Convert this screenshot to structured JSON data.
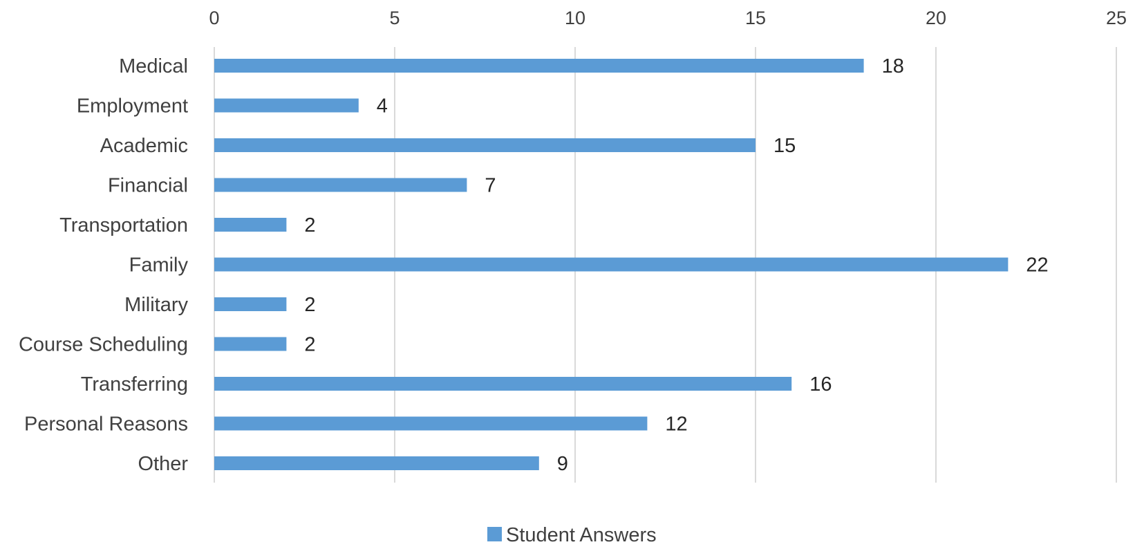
{
  "chart_data": {
    "type": "bar",
    "orientation": "horizontal",
    "categories": [
      "Medical",
      "Employment",
      "Academic",
      "Financial",
      "Transportation",
      "Family",
      "Military",
      "Course Scheduling",
      "Transferring",
      "Personal Reasons",
      "Other"
    ],
    "series": [
      {
        "name": "Student Answers",
        "values": [
          18,
          4,
          15,
          7,
          2,
          22,
          2,
          2,
          16,
          12,
          9
        ],
        "color": "#5b9bd5"
      }
    ],
    "xlim": [
      0,
      25
    ],
    "xticks": [
      0,
      5,
      10,
      15,
      20,
      25
    ],
    "x_axis_position": "top",
    "grid": true,
    "data_labels": true,
    "legend": "bottom-center"
  },
  "colors": {
    "bar": "#5b9bd5",
    "grid": "#d9d9d9",
    "text": "#404040"
  }
}
